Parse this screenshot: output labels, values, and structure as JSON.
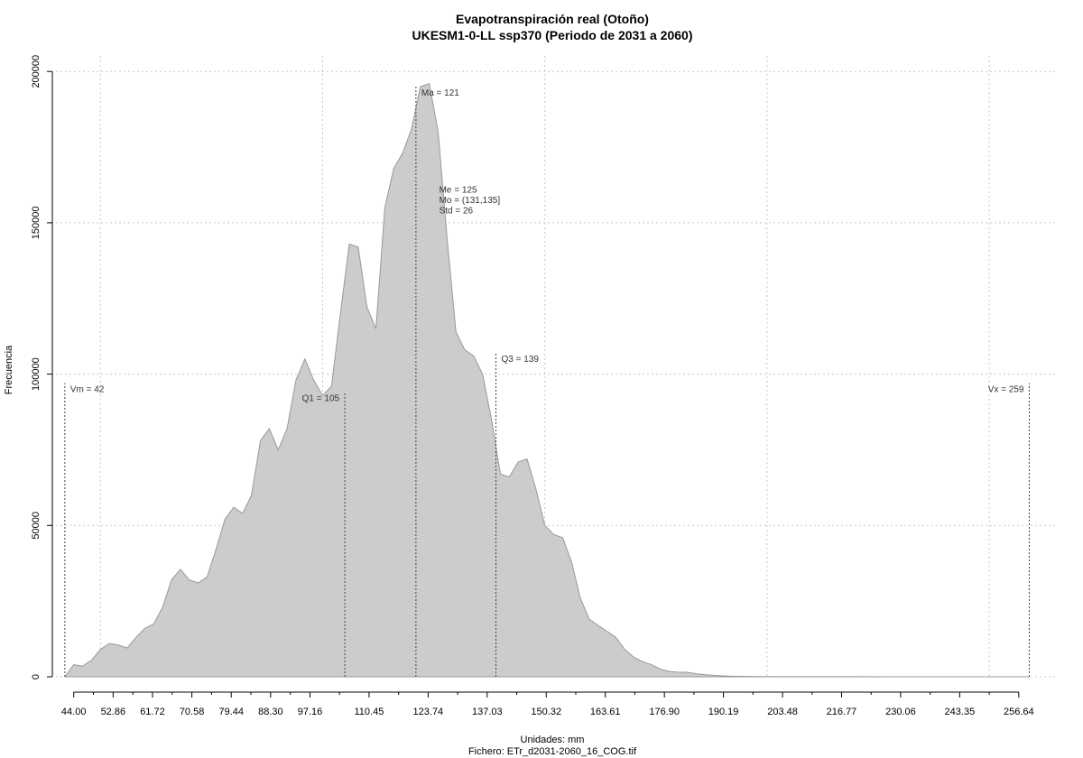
{
  "chart_data": {
    "type": "area",
    "title": "Evapotranspiración real (Otoño)",
    "subtitle": "UKESM1-0-LL ssp370 (Periodo de 2031 a 2060)",
    "xlabel": "Unidades: mm",
    "ylabel": "Frecuencia",
    "footer": "Fichero: ETr_d2031-2060_16_COG.tif",
    "xlim": [
      40,
      265
    ],
    "ylim": [
      0,
      200000
    ],
    "grid": true,
    "x_ticks": [
      "44.00",
      "52.86",
      "61.72",
      "70.58",
      "79.44",
      "88.30",
      "97.16",
      "110.45",
      "123.74",
      "137.03",
      "150.32",
      "163.61",
      "176.90",
      "190.19",
      "203.48",
      "216.77",
      "230.06",
      "243.35",
      "256.64"
    ],
    "y_ticks": [
      "0",
      "50000",
      "100000",
      "150000",
      "200000"
    ],
    "fill_color": "#cccccc",
    "line_color": "#999999",
    "x": [
      42,
      44,
      46,
      48,
      50,
      52,
      54,
      56,
      58,
      60,
      62,
      64,
      66,
      68,
      70,
      72,
      74,
      76,
      78,
      80,
      82,
      84,
      86,
      88,
      90,
      92,
      94,
      96,
      98,
      100,
      102,
      104,
      106,
      108,
      110,
      112,
      114,
      116,
      118,
      120,
      122,
      124,
      126,
      128,
      130,
      132,
      134,
      136,
      138,
      140,
      142,
      144,
      146,
      148,
      150,
      152,
      154,
      156,
      158,
      160,
      162,
      164,
      166,
      168,
      170,
      172,
      174,
      176,
      178,
      180,
      182,
      184,
      186,
      188,
      190,
      192,
      194,
      196,
      198,
      200,
      205,
      210,
      220,
      230,
      240,
      250,
      259
    ],
    "y": [
      0,
      4000,
      3500,
      5500,
      9000,
      11000,
      10500,
      9500,
      13000,
      16000,
      17500,
      23000,
      32000,
      35500,
      32000,
      31000,
      33000,
      42000,
      52000,
      56000,
      54000,
      60000,
      78000,
      82000,
      75000,
      82000,
      98000,
      105000,
      98000,
      93000,
      96000,
      120000,
      143000,
      142000,
      122000,
      115000,
      155000,
      168000,
      173000,
      181000,
      195000,
      196000,
      180000,
      145000,
      114000,
      108000,
      106000,
      100000,
      85000,
      67000,
      66000,
      71000,
      72000,
      62000,
      50000,
      47000,
      46000,
      38000,
      26000,
      19000,
      17000,
      15000,
      13000,
      9000,
      6500,
      5000,
      4000,
      2500,
      1800,
      1500,
      1500,
      1000,
      700,
      500,
      300,
      200,
      150,
      100,
      80,
      60,
      40,
      30,
      20,
      15,
      10,
      5,
      0
    ],
    "reference_lines": [
      {
        "name": "Vm",
        "value": 42,
        "label": "Vm = 42",
        "height": 97000,
        "label_side": "right"
      },
      {
        "name": "Q1",
        "value": 105,
        "label": "Q1 = 105",
        "height": 94000,
        "label_side": "left"
      },
      {
        "name": "Ma",
        "value": 121,
        "label": "Ma = 121",
        "height": 195000,
        "label_side": "right"
      },
      {
        "name": "Q3",
        "value": 139,
        "label": "Q3 = 139",
        "height": 107000,
        "label_side": "right"
      },
      {
        "name": "Vx",
        "value": 259,
        "label": "Vx = 259",
        "height": 97000,
        "label_side": "left"
      }
    ],
    "stats_block": {
      "x_anchor": 125,
      "y_anchor": 160000,
      "lines": [
        "Me = 125",
        "Mo = (131,135]",
        "Std = 26"
      ]
    }
  }
}
